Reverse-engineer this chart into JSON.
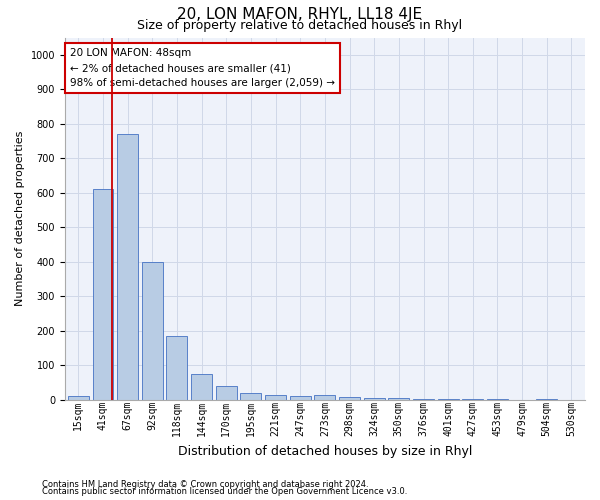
{
  "title": "20, LON MAFON, RHYL, LL18 4JE",
  "subtitle": "Size of property relative to detached houses in Rhyl",
  "xlabel": "Distribution of detached houses by size in Rhyl",
  "ylabel": "Number of detached properties",
  "footnote1": "Contains HM Land Registry data © Crown copyright and database right 2024.",
  "footnote2": "Contains public sector information licensed under the Open Government Licence v3.0.",
  "annotation_line1": "20 LON MAFON: 48sqm",
  "annotation_line2": "← 2% of detached houses are smaller (41)",
  "annotation_line3": "98% of semi-detached houses are larger (2,059) →",
  "categories": [
    "15sqm",
    "41sqm",
    "67sqm",
    "92sqm",
    "118sqm",
    "144sqm",
    "170sqm",
    "195sqm",
    "221sqm",
    "247sqm",
    "273sqm",
    "298sqm",
    "324sqm",
    "350sqm",
    "376sqm",
    "401sqm",
    "427sqm",
    "453sqm",
    "479sqm",
    "504sqm",
    "530sqm"
  ],
  "values": [
    10,
    610,
    770,
    400,
    185,
    75,
    38,
    18,
    13,
    10,
    13,
    7,
    5,
    3,
    2,
    1,
    1,
    1,
    0,
    1,
    0
  ],
  "bar_color": "#b8cce4",
  "bar_edge_color": "#4472c4",
  "marker_color": "#cc0000",
  "ylim": [
    0,
    1050
  ],
  "yticks": [
    0,
    100,
    200,
    300,
    400,
    500,
    600,
    700,
    800,
    900,
    1000
  ],
  "grid_color": "#d0d8e8",
  "bg_color": "#eef2fa",
  "annotation_box_color": "#cc0000",
  "title_fontsize": 11,
  "subtitle_fontsize": 9,
  "ylabel_fontsize": 8,
  "xlabel_fontsize": 9,
  "tick_fontsize": 7,
  "footnote_fontsize": 6
}
